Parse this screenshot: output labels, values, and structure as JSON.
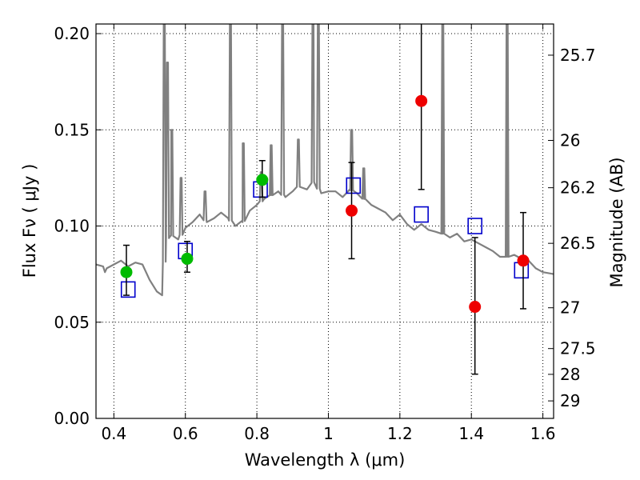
{
  "chart_data": {
    "type": "scatter",
    "xlabel": "Wavelength  λ (μm)",
    "ylabel": "Flux  Fν  ( μJy )",
    "ylabel_right": "Magnitude (AB)",
    "xlim": [
      0.35,
      1.63
    ],
    "ylim": [
      0.0,
      0.205
    ],
    "grid": true,
    "x_ticks": [
      0.4,
      0.6,
      0.8,
      1.0,
      1.2,
      1.4,
      1.6
    ],
    "x_tick_labels": [
      "0.4",
      "0.6",
      "0.8",
      "1",
      "1.2",
      "1.4",
      "1.6"
    ],
    "y_ticks": [
      0.0,
      0.05,
      0.1,
      0.15,
      0.2
    ],
    "y_tick_labels": [
      "0.00",
      "0.05",
      "0.10",
      "0.15",
      "0.20"
    ],
    "right_ticks": [
      {
        "label": "25.7",
        "flux": 0.1888
      },
      {
        "label": "26",
        "flux": 0.1445
      },
      {
        "label": "26.2",
        "flux": 0.1199
      },
      {
        "label": "26.5",
        "flux": 0.091
      },
      {
        "label": "27",
        "flux": 0.0575
      },
      {
        "label": "27.5",
        "flux": 0.0363
      },
      {
        "label": "28",
        "flux": 0.0229
      },
      {
        "label": "29",
        "flux": 0.0091
      }
    ],
    "colors": {
      "template": "#808080",
      "model_squares": "#0000cc",
      "green_points": "#00bb00",
      "red_points": "#ee0000",
      "error_bars": "#000000"
    },
    "template_spectrum": {
      "continuum": [
        [
          0.35,
          0.08
        ],
        [
          0.37,
          0.079
        ],
        [
          0.375,
          0.076
        ],
        [
          0.38,
          0.078
        ],
        [
          0.4,
          0.08
        ],
        [
          0.42,
          0.082
        ],
        [
          0.44,
          0.079
        ],
        [
          0.46,
          0.081
        ],
        [
          0.48,
          0.08
        ],
        [
          0.5,
          0.072
        ],
        [
          0.52,
          0.066
        ],
        [
          0.535,
          0.064
        ],
        [
          0.545,
          0.093
        ],
        [
          0.56,
          0.095
        ],
        [
          0.58,
          0.093
        ],
        [
          0.6,
          0.099
        ],
        [
          0.62,
          0.102
        ],
        [
          0.64,
          0.106
        ],
        [
          0.66,
          0.102
        ],
        [
          0.68,
          0.104
        ],
        [
          0.7,
          0.107
        ],
        [
          0.72,
          0.104
        ],
        [
          0.74,
          0.1
        ],
        [
          0.76,
          0.102
        ],
        [
          0.78,
          0.108
        ],
        [
          0.8,
          0.111
        ],
        [
          0.82,
          0.114
        ],
        [
          0.84,
          0.116
        ],
        [
          0.86,
          0.118
        ],
        [
          0.88,
          0.115
        ],
        [
          0.9,
          0.118
        ],
        [
          0.92,
          0.121
        ],
        [
          0.94,
          0.119
        ],
        [
          0.96,
          0.123
        ],
        [
          0.98,
          0.117
        ],
        [
          1.0,
          0.118
        ],
        [
          1.02,
          0.118
        ],
        [
          1.04,
          0.115
        ],
        [
          1.06,
          0.119
        ],
        [
          1.08,
          0.117
        ],
        [
          1.1,
          0.114
        ],
        [
          1.12,
          0.111
        ],
        [
          1.14,
          0.109
        ],
        [
          1.16,
          0.107
        ],
        [
          1.18,
          0.103
        ],
        [
          1.2,
          0.106
        ],
        [
          1.22,
          0.101
        ],
        [
          1.24,
          0.098
        ],
        [
          1.26,
          0.101
        ],
        [
          1.28,
          0.098
        ],
        [
          1.3,
          0.097
        ],
        [
          1.32,
          0.096
        ],
        [
          1.34,
          0.094
        ],
        [
          1.36,
          0.096
        ],
        [
          1.38,
          0.092
        ],
        [
          1.4,
          0.093
        ],
        [
          1.42,
          0.091
        ],
        [
          1.44,
          0.089
        ],
        [
          1.46,
          0.087
        ],
        [
          1.48,
          0.084
        ],
        [
          1.5,
          0.084
        ],
        [
          1.52,
          0.085
        ],
        [
          1.54,
          0.083
        ],
        [
          1.56,
          0.082
        ],
        [
          1.58,
          0.078
        ],
        [
          1.6,
          0.076
        ],
        [
          1.63,
          0.075
        ]
      ],
      "emission_lines": [
        [
          0.541,
          0.21
        ],
        [
          0.55,
          0.185
        ],
        [
          0.562,
          0.15
        ],
        [
          0.588,
          0.125
        ],
        [
          0.655,
          0.118
        ],
        [
          0.726,
          0.21
        ],
        [
          0.762,
          0.143
        ],
        [
          0.812,
          0.128
        ],
        [
          0.84,
          0.142
        ],
        [
          0.872,
          0.21
        ],
        [
          0.916,
          0.145
        ],
        [
          0.957,
          0.21
        ],
        [
          0.972,
          0.21
        ],
        [
          1.065,
          0.15
        ],
        [
          1.099,
          0.13
        ],
        [
          1.32,
          0.21
        ],
        [
          1.5,
          0.21
        ]
      ]
    },
    "model_squares": [
      {
        "x": 0.44,
        "y": 0.067
      },
      {
        "x": 0.6,
        "y": 0.087
      },
      {
        "x": 0.81,
        "y": 0.119
      },
      {
        "x": 1.07,
        "y": 0.121
      },
      {
        "x": 1.26,
        "y": 0.106
      },
      {
        "x": 1.41,
        "y": 0.1
      },
      {
        "x": 1.54,
        "y": 0.077
      }
    ],
    "observations": [
      {
        "x": 0.435,
        "y": 0.076,
        "yerr_low": 0.012,
        "yerr_high": 0.014,
        "color": "green"
      },
      {
        "x": 0.605,
        "y": 0.083,
        "yerr_low": 0.007,
        "yerr_high": 0.009,
        "color": "green"
      },
      {
        "x": 0.815,
        "y": 0.124,
        "yerr_low": 0.009,
        "yerr_high": 0.01,
        "color": "green"
      },
      {
        "x": 1.065,
        "y": 0.108,
        "yerr_low": 0.025,
        "yerr_high": 0.025,
        "color": "red"
      },
      {
        "x": 1.26,
        "y": 0.165,
        "yerr_low": 0.046,
        "yerr_high": 0.046,
        "color": "red"
      },
      {
        "x": 1.41,
        "y": 0.058,
        "yerr_low": 0.035,
        "yerr_high": 0.036,
        "color": "red"
      },
      {
        "x": 1.545,
        "y": 0.082,
        "yerr_low": 0.025,
        "yerr_high": 0.025,
        "color": "red"
      }
    ]
  }
}
